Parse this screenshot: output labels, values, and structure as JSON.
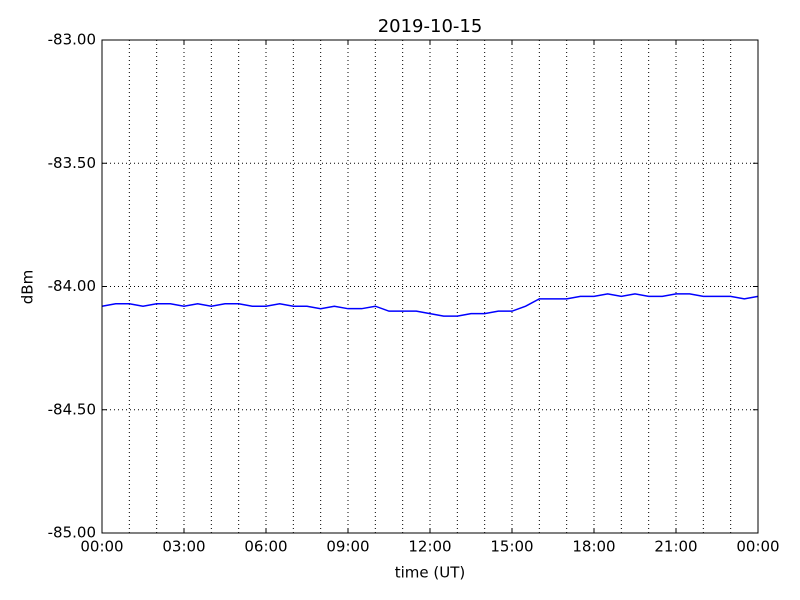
{
  "chart_data": {
    "type": "line",
    "title": "2019-10-15",
    "xlabel": "time (UT)",
    "ylabel": "dBm",
    "x": [
      0,
      0.5,
      1,
      1.5,
      2,
      2.5,
      3,
      3.5,
      4,
      4.5,
      5,
      5.5,
      6,
      6.5,
      7,
      7.5,
      8,
      8.5,
      9,
      9.5,
      10,
      10.5,
      11,
      11.5,
      12,
      12.5,
      13,
      13.5,
      14,
      14.5,
      15,
      15.5,
      16,
      16.5,
      17,
      17.5,
      18,
      18.5,
      19,
      19.5,
      20,
      20.5,
      21,
      21.5,
      22,
      22.5,
      23,
      23.5,
      24
    ],
    "series": [
      {
        "color": "#0000ff",
        "values": [
          -84.08,
          -84.07,
          -84.07,
          -84.08,
          -84.07,
          -84.07,
          -84.08,
          -84.07,
          -84.08,
          -84.07,
          -84.07,
          -84.08,
          -84.08,
          -84.07,
          -84.08,
          -84.08,
          -84.09,
          -84.08,
          -84.09,
          -84.09,
          -84.08,
          -84.1,
          -84.1,
          -84.1,
          -84.11,
          -84.12,
          -84.12,
          -84.11,
          -84.11,
          -84.1,
          -84.1,
          -84.08,
          -84.05,
          -84.05,
          -84.05,
          -84.04,
          -84.04,
          -84.03,
          -84.04,
          -84.03,
          -84.04,
          -84.04,
          -84.03,
          -84.03,
          -84.04,
          -84.04,
          -84.04,
          -84.05,
          -84.04
        ]
      }
    ],
    "xlim": [
      0,
      24
    ],
    "xticks": [
      {
        "value": 0,
        "label": "00:00"
      },
      {
        "value": 3,
        "label": "03:00"
      },
      {
        "value": 6,
        "label": "06:00"
      },
      {
        "value": 9,
        "label": "09:00"
      },
      {
        "value": 12,
        "label": "12:00"
      },
      {
        "value": 15,
        "label": "15:00"
      },
      {
        "value": 18,
        "label": "18:00"
      },
      {
        "value": 21,
        "label": "21:00"
      },
      {
        "value": 24,
        "label": "00:00"
      }
    ],
    "xminorticks": [
      1,
      2,
      4,
      5,
      7,
      8,
      10,
      11,
      13,
      14,
      16,
      17,
      19,
      20,
      22,
      23
    ],
    "ylim": [
      -85,
      -83
    ],
    "yticks": [
      {
        "value": -85,
        "label": "-85.00"
      },
      {
        "value": -84.5,
        "label": "-84.50"
      },
      {
        "value": -84,
        "label": "-84.00"
      },
      {
        "value": -83.5,
        "label": "-83.50"
      },
      {
        "value": -83,
        "label": "-83.00"
      }
    ],
    "grid": true
  }
}
